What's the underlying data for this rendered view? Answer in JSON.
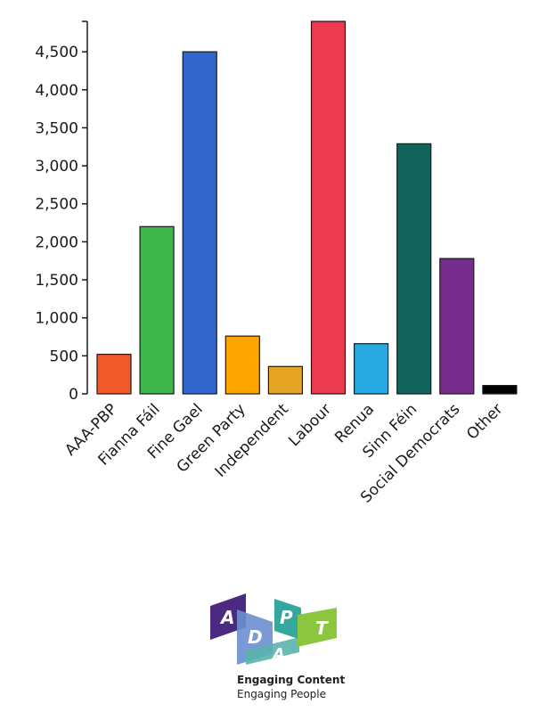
{
  "chart_data": {
    "type": "bar",
    "title": "",
    "xlabel": "",
    "ylabel": "",
    "ylim": [
      0,
      4900
    ],
    "yticks": [
      0,
      500,
      1000,
      1500,
      2000,
      2500,
      3000,
      3500,
      4000,
      4500
    ],
    "ytick_labels": [
      "0",
      "500",
      "1,000",
      "1,500",
      "2,000",
      "2,500",
      "3,000",
      "3,500",
      "4,000",
      "4,500"
    ],
    "categories": [
      "AAA-PBP",
      "Fianna Fáil",
      "Fine Gael",
      "Green Party",
      "Independent",
      "Labour",
      "Renua",
      "Sinn Féin",
      "Social Democrats",
      "Other"
    ],
    "values": [
      520,
      2200,
      4500,
      760,
      360,
      4900,
      660,
      3290,
      1780,
      110
    ],
    "colors": [
      "#f15a2b",
      "#3cb54a",
      "#3366cc",
      "#ffa500",
      "#e6a525",
      "#ec3a4e",
      "#27aae1",
      "#12635b",
      "#772d8b",
      "#000000"
    ],
    "grid": false
  },
  "logo": {
    "letters": [
      "A",
      "D",
      "P",
      "A",
      "T"
    ],
    "tagline_1": "Engaging Content",
    "tagline_2": "Engaging People"
  }
}
